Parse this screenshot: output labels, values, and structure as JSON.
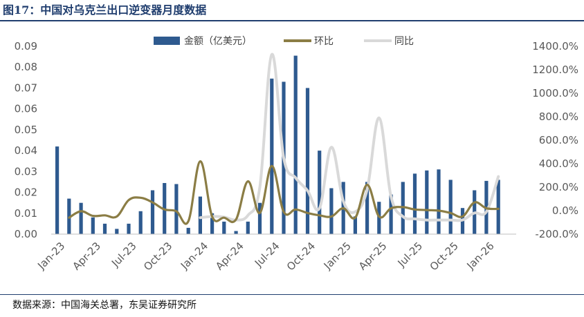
{
  "header": {
    "title": "图17：中国对乌克兰出口逆变器月度数据"
  },
  "footer": {
    "source": "数据来源：中国海关总署，东吴证券研究所"
  },
  "chart_data": {
    "type": "bar",
    "categories": [
      "Jan-23",
      "Feb-23",
      "Mar-23",
      "Apr-23",
      "May-23",
      "Jun-23",
      "Jul-23",
      "Aug-23",
      "Sep-23",
      "Oct-23",
      "Nov-23",
      "Dec-23",
      "Jan-24",
      "Feb-24",
      "Mar-24",
      "Apr-24",
      "May-24",
      "Jun-24",
      "Jul-24",
      "Aug-24",
      "Sep-24",
      "Oct-24",
      "Nov-24",
      "Dec-24",
      "Jan-25",
      "Feb-25",
      "Mar-25",
      "Apr-25",
      "May-25",
      "Jun-25",
      "Jul-25",
      "Aug-25",
      "Sep-25",
      "Oct-25",
      "Nov-25",
      "Dec-25",
      "Jan-26",
      "Feb-26",
      "Mar-26"
    ],
    "x_tick_labels": [
      "Jan-23",
      "Apr-23",
      "Jul-23",
      "Oct-23",
      "Jan-24",
      "Apr-24",
      "Jul-24",
      "Oct-24",
      "Jan-25",
      "Apr-25",
      "Jul-25",
      "Oct-25",
      "Jan-26"
    ],
    "series": [
      {
        "name": "金额（亿美元）",
        "type": "bar",
        "axis": "left",
        "color": "#2e5a8f",
        "values": [
          0.042,
          0.017,
          0.015,
          0.008,
          0.005,
          0.0025,
          0.005,
          0.011,
          0.021,
          0.0245,
          0.024,
          0.003,
          0.018,
          0.01,
          0.006,
          0.0015,
          0.006,
          0.015,
          0.0745,
          0.073,
          0.0855,
          0.07,
          0.04,
          0.022,
          0.025,
          0.0085,
          0.025,
          0.0155,
          0.019,
          0.025,
          0.029,
          0.0305,
          0.031,
          0.026,
          0.0125,
          0.021,
          0.0255,
          0.026,
          null
        ]
      },
      {
        "name": "环比",
        "type": "line",
        "axis": "right",
        "color": "#8b7d45",
        "values": [
          null,
          -60,
          -5,
          -45,
          -40,
          -50,
          90,
          110,
          70,
          10,
          -5,
          -90,
          420,
          -50,
          -60,
          -75,
          250,
          -20,
          380,
          -10,
          10,
          -20,
          -40,
          -50,
          20,
          -60,
          220,
          -50,
          20,
          30,
          10,
          5,
          0,
          -20,
          -50,
          70,
          20,
          15,
          null
        ]
      },
      {
        "name": "同比",
        "type": "line",
        "axis": "right",
        "color": "#d9d9d9",
        "values": [
          null,
          null,
          null,
          null,
          null,
          null,
          null,
          null,
          null,
          null,
          null,
          null,
          -60,
          -50,
          -55,
          -80,
          -40,
          200,
          1330,
          450,
          280,
          170,
          20,
          540,
          80,
          -10,
          180,
          790,
          120,
          -50,
          -70,
          -80,
          -80,
          -80,
          -80,
          -20,
          -10,
          290,
          null
        ]
      }
    ],
    "y_left": {
      "min": 0,
      "max": 0.09,
      "ticks": [
        "0.00",
        "0.01",
        "0.02",
        "0.03",
        "0.04",
        "0.05",
        "0.06",
        "0.07",
        "0.08",
        "0.09"
      ]
    },
    "y_right": {
      "min": -200,
      "max": 1400,
      "ticks": [
        "-200.0%",
        "0.0%",
        "200.0%",
        "400.0%",
        "600.0%",
        "800.0%",
        "1000.0%",
        "1200.0%",
        "1400.0%"
      ]
    },
    "grid": false,
    "legend_position": "top"
  }
}
